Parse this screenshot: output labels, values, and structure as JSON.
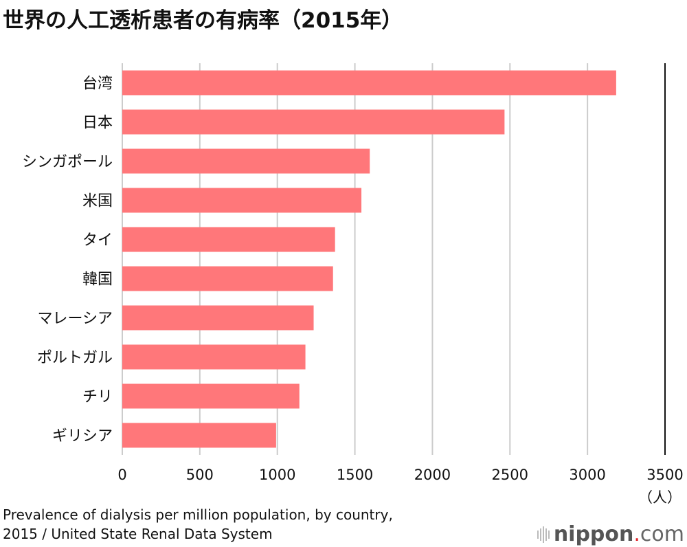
{
  "chart_data": {
    "type": "bar",
    "orientation": "horizontal",
    "title": "世界の人工透析患者の有病率（2015年）",
    "categories": [
      "台湾",
      "日本",
      "シンガポール",
      "米国",
      "タイ",
      "韓国",
      "マレーシア",
      "ポルトガル",
      "チリ",
      "ギリシア"
    ],
    "values": [
      3185,
      2465,
      1596,
      1542,
      1372,
      1359,
      1234,
      1181,
      1142,
      992
    ],
    "xlim": [
      0,
      3500
    ],
    "xticks": [
      "0",
      "500",
      "1000",
      "1500",
      "2000",
      "2500",
      "3000",
      "3500"
    ],
    "xtick_values": [
      0,
      500,
      1000,
      1500,
      2000,
      2500,
      3000,
      3500
    ],
    "unit": "（人）",
    "grid": true,
    "bar_color": "#ff777a"
  },
  "caption": {
    "line1": "Prevalence of dialysis per million population, by country,",
    "line2": "2015 / United State Renal Data System"
  },
  "logo": {
    "brand": "nippon",
    "dot": ".",
    "suffix": "com"
  }
}
